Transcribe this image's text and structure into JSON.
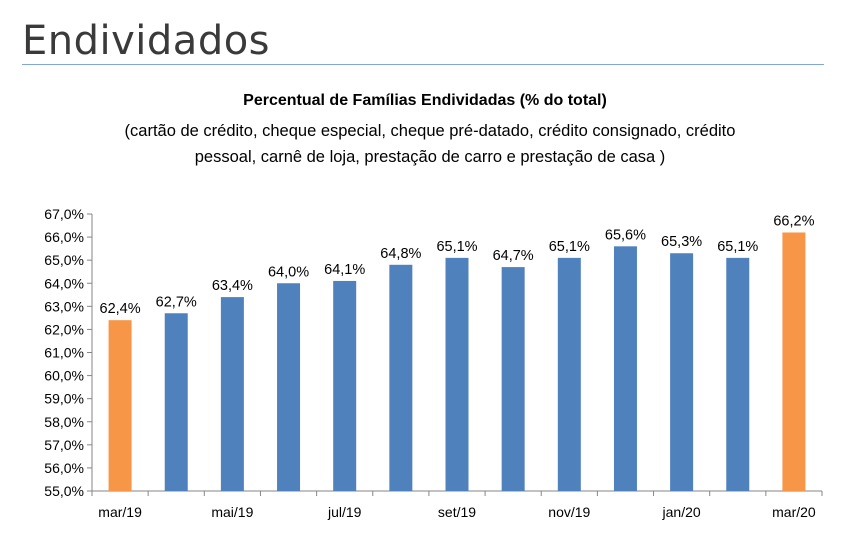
{
  "page": {
    "heading": "Endividados"
  },
  "chart_data": {
    "type": "bar",
    "title": "Percentual de Famílias Endividadas (% do total)",
    "subtitle": "(cartão de crédito, cheque especial, cheque pré-datado, crédito consignado, crédito pessoal, carnê de loja, prestação de carro e prestação de casa )",
    "categories": [
      "mar/19",
      "abr/19",
      "mai/19",
      "jun/19",
      "jul/19",
      "ago/19",
      "set/19",
      "out/19",
      "nov/19",
      "dez/19",
      "jan/20",
      "fev/20",
      "mar/20"
    ],
    "x_tick_labels": [
      "mar/19",
      "",
      "mai/19",
      "",
      "jul/19",
      "",
      "set/19",
      "",
      "nov/19",
      "",
      "jan/20",
      "",
      "mar/20"
    ],
    "values": [
      62.4,
      62.7,
      63.4,
      64.0,
      64.1,
      64.8,
      65.1,
      64.7,
      65.1,
      65.6,
      65.3,
      65.1,
      66.2
    ],
    "value_labels": [
      "62,4%",
      "62,7%",
      "63,4%",
      "64,0%",
      "64,1%",
      "64,8%",
      "65,1%",
      "64,7%",
      "65,1%",
      "65,6%",
      "65,3%",
      "65,1%",
      "66,2%"
    ],
    "highlighted": [
      true,
      false,
      false,
      false,
      false,
      false,
      false,
      false,
      false,
      false,
      false,
      false,
      true
    ],
    "ylim": [
      55,
      67
    ],
    "y_ticks": [
      55,
      56,
      57,
      58,
      59,
      60,
      61,
      62,
      63,
      64,
      65,
      66,
      67
    ],
    "y_tick_labels": [
      "55,0%",
      "56,0%",
      "57,0%",
      "58,0%",
      "59,0%",
      "60,0%",
      "61,0%",
      "62,0%",
      "63,0%",
      "64,0%",
      "65,0%",
      "66,0%",
      "67,0%"
    ],
    "xlabel": "",
    "ylabel": "",
    "grid": false,
    "legend": "none",
    "colors": {
      "bar": "#4f81bd",
      "highlight": "#f79646",
      "axis": "#868686"
    }
  }
}
